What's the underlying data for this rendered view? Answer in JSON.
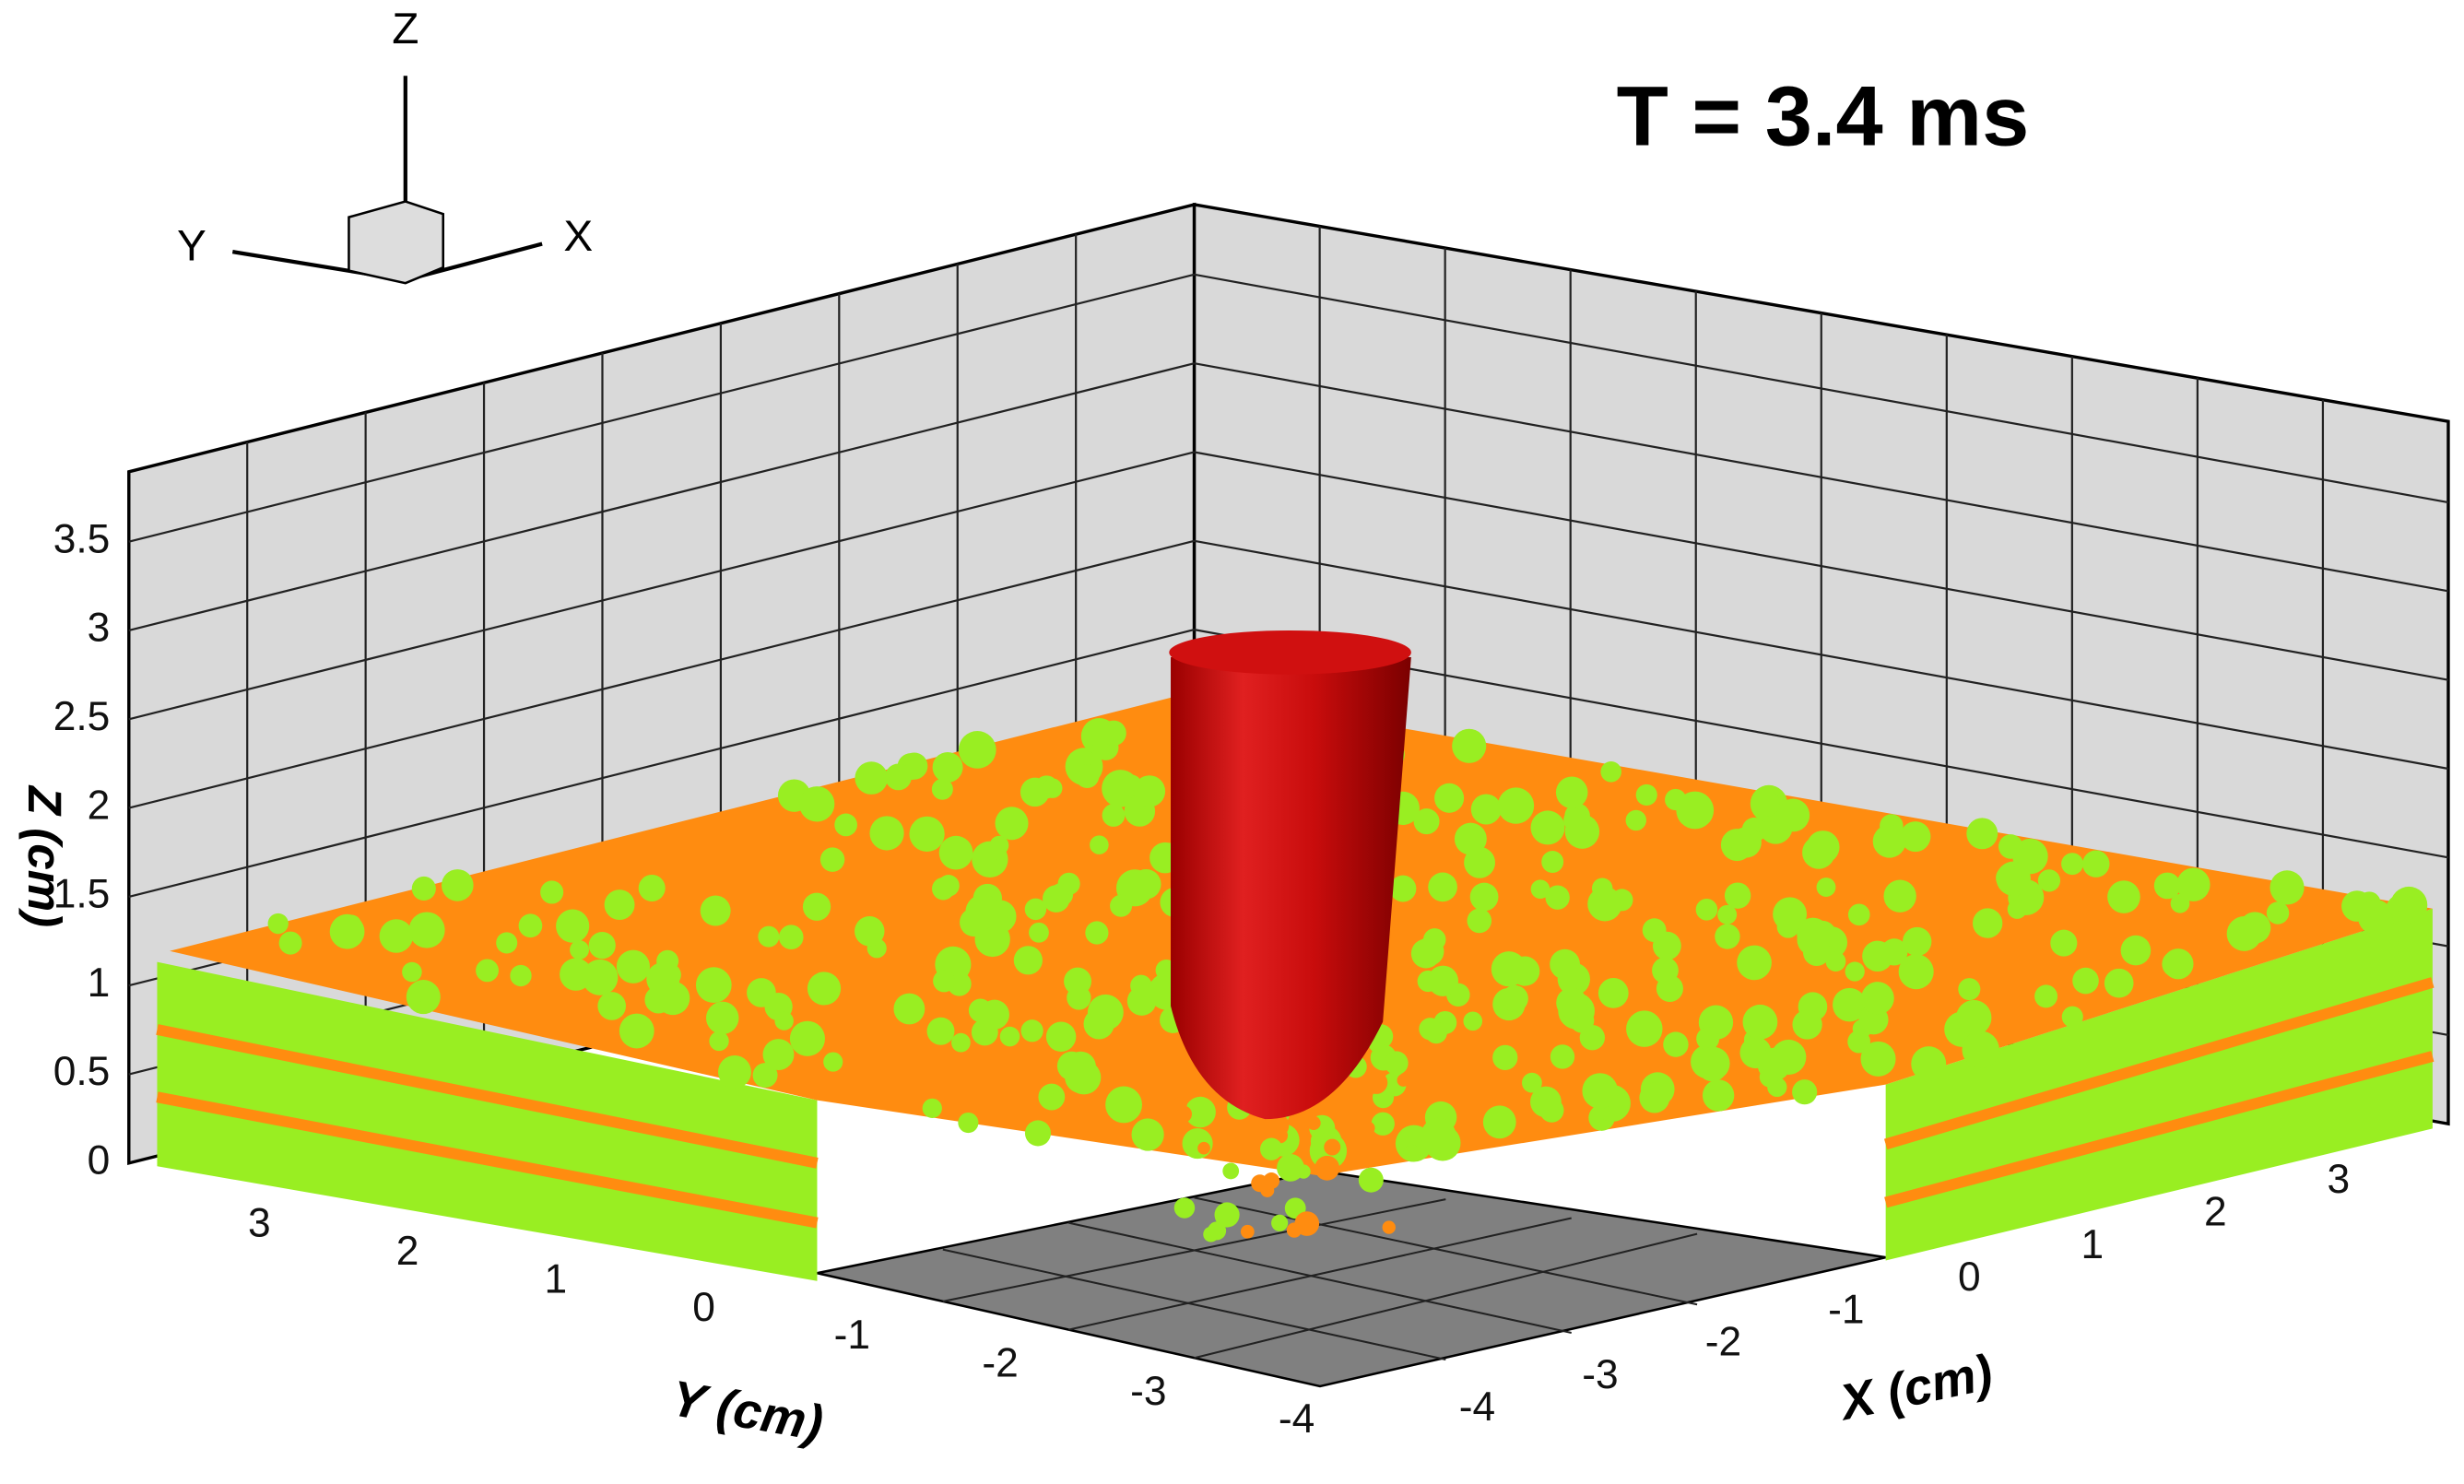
{
  "title": "T = 3.4 ms",
  "orientation_axes": {
    "z": "Z",
    "y": "Y",
    "x": "X"
  },
  "z_axis": {
    "label": "Z (cm)",
    "ticks": [
      "0",
      "0.5",
      "1",
      "1.5",
      "2",
      "2.5",
      "3",
      "3.5"
    ]
  },
  "y_axis": {
    "label": "Y (cm)",
    "ticks": [
      "3",
      "2",
      "1",
      "0",
      "-1",
      "-2",
      "-3",
      "-4"
    ]
  },
  "x_axis": {
    "label": "X (cm)",
    "ticks": [
      "-4",
      "-3",
      "-2",
      "-1",
      "0",
      "1",
      "2",
      "3"
    ]
  }
}
